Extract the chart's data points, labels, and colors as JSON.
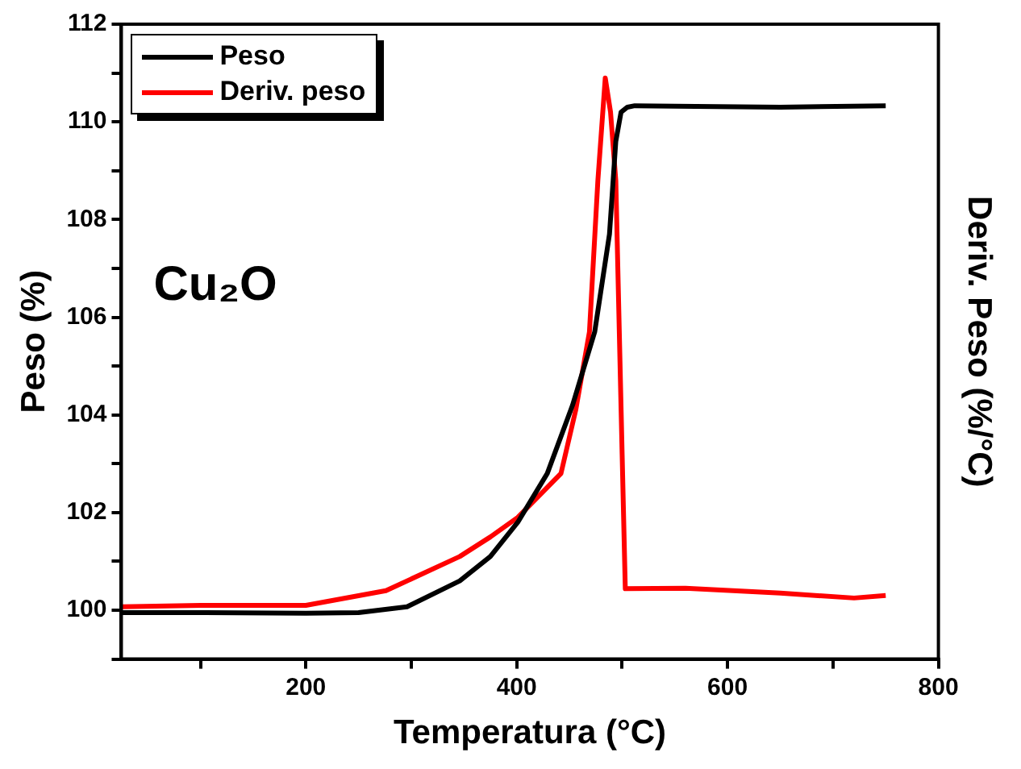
{
  "chart_data": {
    "type": "line",
    "xlabel": "Temperatura (°C)",
    "ylabel": "Peso (%)",
    "y2label": "Deriv. Peso (%/°C)",
    "annotations": [
      "Cu₂O"
    ],
    "xlim": [
      25,
      800
    ],
    "xticks": [
      {
        "value": 100,
        "label": null
      },
      200,
      {
        "value": 300,
        "label": null
      },
      400,
      {
        "value": 500,
        "label": null
      },
      600,
      {
        "value": 700,
        "label": null
      },
      800
    ],
    "ylim": [
      99,
      112
    ],
    "yticks": [
      {
        "value": 99,
        "label": null
      },
      100,
      {
        "value": 101,
        "label": null
      },
      102,
      {
        "value": 103,
        "label": null
      },
      104,
      {
        "value": 105,
        "label": null
      },
      106,
      {
        "value": 107,
        "label": null
      },
      108,
      {
        "value": 109,
        "label": null
      },
      110,
      {
        "value": 111,
        "label": null
      },
      112
    ],
    "grid": false,
    "legend": "top left",
    "marker": "none",
    "line_style": "solid",
    "series": [
      {
        "name": "Peso",
        "color": "#000000",
        "x": [
          25,
          100,
          200,
          250,
          296,
          346,
          375,
          401,
          429,
          453,
          474,
          488,
          494,
          499,
          505,
          512,
          550,
          650,
          750
        ],
        "values": [
          99.95,
          99.95,
          99.94,
          99.95,
          100.07,
          100.6,
          101.1,
          101.8,
          102.8,
          104.2,
          105.7,
          107.7,
          109.6,
          110.2,
          110.3,
          110.33,
          110.32,
          110.3,
          110.33
        ]
      },
      {
        "name": "Deriv. peso",
        "color": "#ff0000",
        "x": [
          25,
          100,
          200,
          276,
          346,
          375,
          401,
          442,
          456,
          469,
          477,
          484,
          489,
          494,
          500,
          503,
          560,
          650,
          720,
          750
        ],
        "values": [
          100.07,
          100.1,
          100.1,
          100.4,
          101.1,
          101.5,
          101.9,
          102.8,
          104.1,
          105.7,
          108.8,
          110.9,
          110.2,
          108.8,
          103.2,
          100.44,
          100.45,
          100.35,
          100.25,
          100.3
        ]
      }
    ]
  }
}
